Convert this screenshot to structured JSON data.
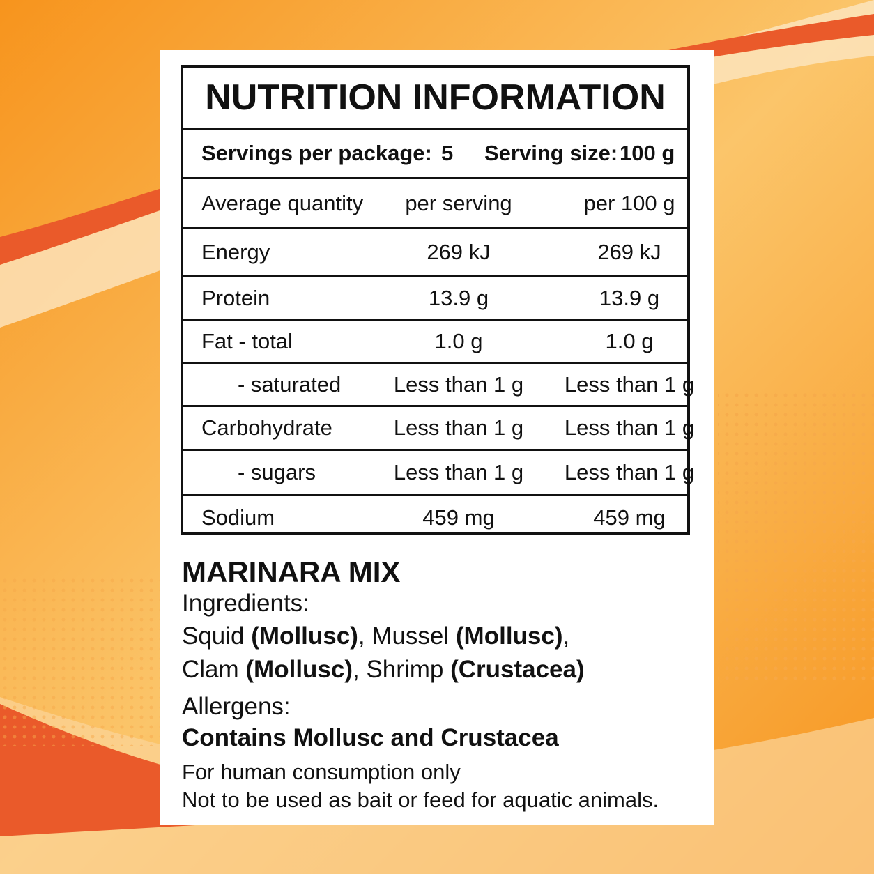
{
  "label": {
    "title": "NUTRITION INFORMATION",
    "servings": {
      "per_package_label": "Servings per package:",
      "per_package": "5",
      "size_label": "Serving size:",
      "size": "100 g"
    },
    "table": {
      "header": [
        "Average quantity",
        "per serving",
        "per 100 g"
      ],
      "rows": [
        {
          "cells": [
            "Energy",
            "269 kJ",
            "269 kJ"
          ]
        },
        {
          "cells": [
            "Protein",
            "13.9 g",
            "13.9 g"
          ]
        },
        {
          "cells": [
            "Fat - total",
            "1.0 g",
            "1.0 g"
          ]
        },
        {
          "cells": [
            "- saturated",
            "Less than 1 g",
            "Less than 1 g"
          ],
          "indent": true
        },
        {
          "cells": [
            "Carbohydrate",
            "Less than 1 g",
            "Less than 1 g"
          ]
        },
        {
          "cells": [
            "- sugars",
            "Less than 1 g",
            "Less than 1 g"
          ],
          "indent": true
        },
        {
          "cells": [
            "Sodium",
            "459 mg",
            "459 mg"
          ]
        }
      ]
    },
    "product": "MARINARA MIX",
    "ingredients_label": "Ingredients:",
    "ingredients": [
      [
        {
          "text": "Squid "
        },
        {
          "text": "(Mollusc)",
          "bold": true
        },
        {
          "text": ", Mussel "
        },
        {
          "text": "(Mollusc)",
          "bold": true
        },
        {
          "text": ","
        }
      ],
      [
        {
          "text": "Clam "
        },
        {
          "text": "(Mollusc)",
          "bold": true
        },
        {
          "text": ", Shrimp "
        },
        {
          "text": "(Crustacea)",
          "bold": true
        }
      ]
    ],
    "allergens_label": "Allergens:",
    "allergens": "Contains Mollusc and Crustacea",
    "notes": [
      "For human consumption only",
      "Not to be used as bait or feed for aquatic animals."
    ]
  }
}
